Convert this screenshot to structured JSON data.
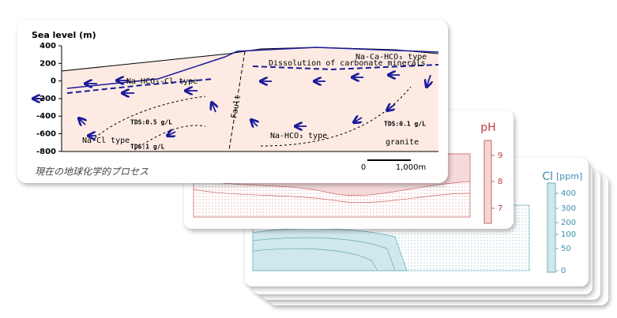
{
  "front": {
    "axis_title": "Sea level (m)",
    "yticks": [
      "400",
      "200",
      "0",
      "-200",
      "-400",
      "-600",
      "-800"
    ],
    "labels": {
      "na_hco3_cl": "Na-HCO₃-Cl type",
      "na_ca_hco3": "Na-Ca-HCO₃ type",
      "dissolution": "Dissolution of carbonate minerals",
      "fault": "Fault",
      "tds05": "TDS:0.5 g/L",
      "tds1": "TDS:1 g/L",
      "na_cl": "Na-Cl type",
      "na_hco3": "Na-HCO₃ type",
      "tds01": "TDS:0.1 g/L",
      "granite": "granite"
    },
    "scale": {
      "start": "0",
      "end": "1,000m"
    },
    "caption": "現在の地球化学的プロセス"
  },
  "ph": {
    "title": "pH",
    "ticks": [
      "9",
      "8",
      "7"
    ]
  },
  "cl": {
    "title": "Cl",
    "unit": "[ppm]",
    "ticks": [
      "400",
      "300",
      "200",
      "100",
      "50",
      "0"
    ]
  }
}
